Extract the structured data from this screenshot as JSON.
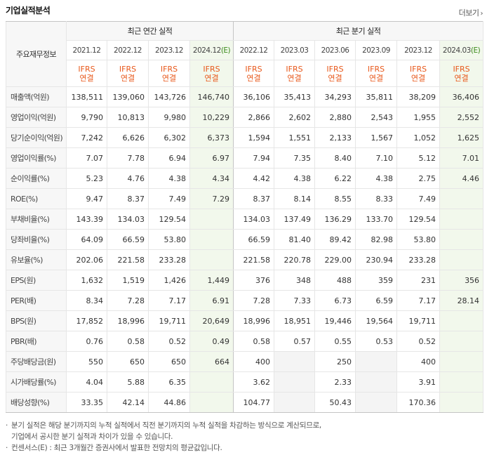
{
  "title": "기업실적분석",
  "more_label": "더보기",
  "more_arrow": "›",
  "header": {
    "corner": "주요재무정보",
    "annual_group": "최근 연간 실적",
    "quarter_group": "최근 분기 실적",
    "periods": [
      {
        "label": "2021.12",
        "est": false
      },
      {
        "label": "2022.12",
        "est": false
      },
      {
        "label": "2023.12",
        "est": false
      },
      {
        "label": "2024.12",
        "est": true
      },
      {
        "label": "2022.12",
        "est": false
      },
      {
        "label": "2023.03",
        "est": false
      },
      {
        "label": "2023.06",
        "est": false
      },
      {
        "label": "2023.09",
        "est": false
      },
      {
        "label": "2023.12",
        "est": false
      },
      {
        "label": "2024.03",
        "est": true
      }
    ],
    "est_mark": "(E)",
    "ifrs_line1": "IFRS",
    "ifrs_line2": "연결"
  },
  "rows": [
    {
      "name": "매출액(억원)",
      "sec": true,
      "values": [
        "138,511",
        "139,060",
        "143,726",
        "146,740",
        "36,106",
        "35,413",
        "34,293",
        "35,811",
        "38,209",
        "36,406"
      ]
    },
    {
      "name": "영업이익(억원)",
      "values": [
        "9,790",
        "10,813",
        "9,980",
        "10,229",
        "2,866",
        "2,602",
        "2,880",
        "2,543",
        "1,955",
        "2,552"
      ]
    },
    {
      "name": "당기순이익(억원)",
      "values": [
        "7,242",
        "6,626",
        "6,302",
        "6,373",
        "1,594",
        "1,551",
        "2,133",
        "1,567",
        "1,052",
        "1,625"
      ]
    },
    {
      "name": "영업이익률(%)",
      "sec": true,
      "values": [
        "7.07",
        "7.78",
        "6.94",
        "6.97",
        "7.94",
        "7.35",
        "8.40",
        "7.10",
        "5.12",
        "7.01"
      ]
    },
    {
      "name": "순이익률(%)",
      "values": [
        "5.23",
        "4.76",
        "4.38",
        "4.34",
        "4.42",
        "4.38",
        "6.22",
        "4.38",
        "2.75",
        "4.46"
      ]
    },
    {
      "name": "ROE(%)",
      "values": [
        "9.47",
        "8.37",
        "7.49",
        "7.29",
        "8.37",
        "8.14",
        "8.55",
        "8.33",
        "7.49",
        ""
      ]
    },
    {
      "name": "부채비율(%)",
      "sec": true,
      "values": [
        "143.39",
        "134.03",
        "129.54",
        "",
        "134.03",
        "137.49",
        "136.29",
        "133.70",
        "129.54",
        ""
      ]
    },
    {
      "name": "당좌비율(%)",
      "values": [
        "64.09",
        "66.59",
        "53.80",
        "",
        "66.59",
        "81.40",
        "89.42",
        "82.98",
        "53.80",
        ""
      ]
    },
    {
      "name": "유보율(%)",
      "values": [
        "202.06",
        "221.58",
        "233.28",
        "",
        "221.58",
        "220.78",
        "229.00",
        "230.94",
        "233.28",
        ""
      ]
    },
    {
      "name": "EPS(원)",
      "sec": true,
      "values": [
        "1,632",
        "1,519",
        "1,426",
        "1,449",
        "376",
        "348",
        "488",
        "359",
        "231",
        "356"
      ]
    },
    {
      "name": "PER(배)",
      "values": [
        "8.34",
        "7.28",
        "7.17",
        "6.91",
        "7.28",
        "7.33",
        "6.73",
        "6.59",
        "7.17",
        "28.14"
      ]
    },
    {
      "name": "BPS(원)",
      "values": [
        "17,852",
        "18,996",
        "19,711",
        "20,649",
        "18,996",
        "18,951",
        "19,446",
        "19,564",
        "19,711",
        ""
      ]
    },
    {
      "name": "PBR(배)",
      "values": [
        "0.76",
        "0.58",
        "0.52",
        "0.49",
        "0.58",
        "0.57",
        "0.55",
        "0.53",
        "0.52",
        ""
      ]
    },
    {
      "name": "주당배당금(원)",
      "sec": true,
      "values": [
        "550",
        "650",
        "650",
        "664",
        "400",
        "",
        "250",
        "",
        "400",
        ""
      ]
    },
    {
      "name": "시가배당률(%)",
      "values": [
        "4.04",
        "5.88",
        "6.35",
        "",
        "3.62",
        "",
        "2.33",
        "",
        "3.91",
        ""
      ]
    },
    {
      "name": "배당성향(%)",
      "last": true,
      "values": [
        "33.35",
        "42.14",
        "44.86",
        "",
        "104.77",
        "",
        "50.43",
        "",
        "170.36",
        ""
      ]
    }
  ],
  "blank_cells": [
    [
      13,
      5
    ],
    [
      13,
      7
    ],
    [
      14,
      5
    ],
    [
      14,
      7
    ],
    [
      15,
      5
    ],
    [
      15,
      7
    ]
  ],
  "notes": [
    "분기 실적은 해당 분기까지의 누적 실적에서 직전 분기까지의 누적 실적을 차감하는 방식으로 계산되므로,",
    "기업에서 공시한 분기 실적과 차이가 있을 수 있습니다.",
    "컨센서스(E) : 최근 3개월간 증권사에서 발표한 전망치의 평균값입니다."
  ],
  "colors": {
    "ifrs": "#e8591c",
    "estimate": "#3a8a1a",
    "estimate_bg": "#f2f8ec"
  }
}
